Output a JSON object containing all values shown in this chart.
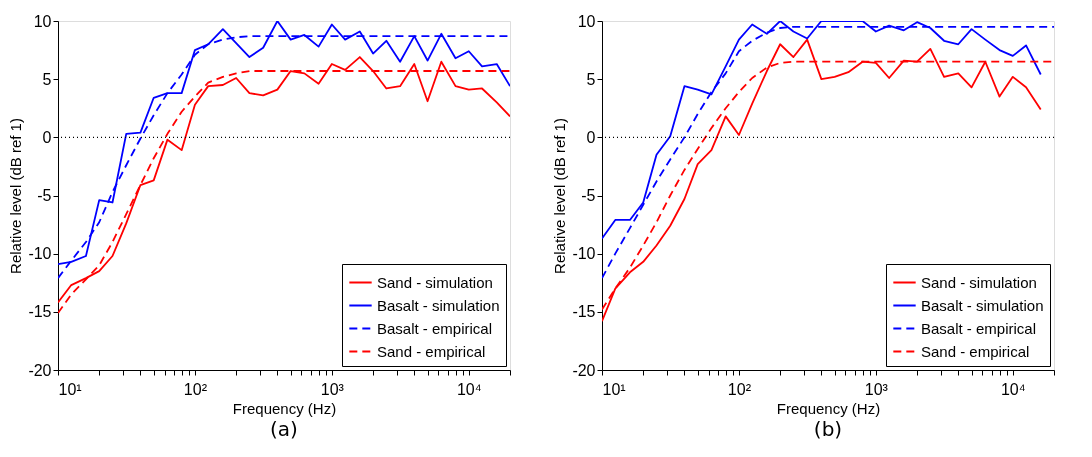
{
  "chart_data": [
    {
      "type": "line",
      "xlabel": "Frequency (Hz)",
      "ylabel": "Relative level (dB ref 1)",
      "log": "x",
      "xlim": [
        10,
        20000
      ],
      "ylim": [
        -20,
        10
      ],
      "yticks": [
        -20,
        -15,
        -10,
        -5,
        0,
        5,
        10
      ],
      "xticks": [
        {
          "value": 10,
          "label": "10¹"
        },
        {
          "value": 20,
          "label": null
        },
        {
          "value": 30,
          "label": null
        },
        {
          "value": 40,
          "label": null
        },
        {
          "value": 50,
          "label": null
        },
        {
          "value": 60,
          "label": null
        },
        {
          "value": 70,
          "label": null
        },
        {
          "value": 80,
          "label": null
        },
        {
          "value": 90,
          "label": null
        },
        {
          "value": 100,
          "label": "10²"
        },
        {
          "value": 200,
          "label": null
        },
        {
          "value": 300,
          "label": null
        },
        {
          "value": 400,
          "label": null
        },
        {
          "value": 500,
          "label": null
        },
        {
          "value": 600,
          "label": null
        },
        {
          "value": 700,
          "label": null
        },
        {
          "value": 800,
          "label": null
        },
        {
          "value": 900,
          "label": null
        },
        {
          "value": 1000,
          "label": "10³"
        },
        {
          "value": 2000,
          "label": null
        },
        {
          "value": 3000,
          "label": null
        },
        {
          "value": 4000,
          "label": null
        },
        {
          "value": 5000,
          "label": null
        },
        {
          "value": 6000,
          "label": null
        },
        {
          "value": 7000,
          "label": null
        },
        {
          "value": 8000,
          "label": null
        },
        {
          "value": 9000,
          "label": null
        },
        {
          "value": 10000,
          "label": "10⁴"
        },
        {
          "value": 20000,
          "label": null
        }
      ],
      "grid": false,
      "legend": "bottom right",
      "marker": "none",
      "annotations": [
        "(a)"
      ],
      "ref_lines": [
        {
          "axis": "y",
          "value": 0,
          "label": null,
          "color": "#000000",
          "line_style": "dotted"
        }
      ],
      "x": [
        10,
        12.5,
        16,
        20,
        25,
        31.5,
        40,
        50,
        63,
        80,
        100,
        125,
        160,
        200,
        250,
        315,
        400,
        500,
        630,
        800,
        1000,
        1250,
        1600,
        2000,
        2500,
        3150,
        4000,
        5000,
        6300,
        8000,
        10000,
        12500,
        16000,
        20000
      ],
      "series": [
        {
          "name": "Sand - simulation",
          "color": "#ff0000",
          "line_style": "solid",
          "values": [
            -14.2,
            -12.7,
            -12.1,
            -11.5,
            -10.2,
            -7.4,
            -4.1,
            -3.7,
            -0.2,
            -1.1,
            2.8,
            4.4,
            4.5,
            5.1,
            3.8,
            3.6,
            4.1,
            5.7,
            5.5,
            4.6,
            6.3,
            5.8,
            6.9,
            5.7,
            4.2,
            4.4,
            6.3,
            3.1,
            6.5,
            4.4,
            4.1,
            4.2,
            3.0,
            1.8
          ]
        },
        {
          "name": "Basalt - simulation",
          "color": "#0000ff",
          "line_style": "solid",
          "values": [
            -10.9,
            -10.7,
            -10.2,
            -5.4,
            -5.6,
            0.3,
            0.4,
            3.4,
            3.8,
            3.8,
            7.5,
            8.0,
            9.3,
            8.1,
            6.9,
            7.7,
            10.0,
            8.4,
            8.8,
            7.8,
            9.7,
            8.4,
            9.1,
            7.2,
            8.3,
            6.5,
            8.7,
            6.6,
            8.9,
            6.8,
            7.4,
            6.1,
            6.3,
            4.4
          ]
        },
        {
          "name": "Basalt - empirical",
          "color": "#0000ff",
          "line_style": "dashed",
          "values": [
            -12.1,
            -10.6,
            -9.0,
            -7.3,
            -4.7,
            -2.4,
            -0.1,
            1.9,
            3.8,
            5.4,
            7.1,
            8.0,
            8.4,
            8.6,
            8.7,
            8.7,
            8.7,
            8.7,
            8.7,
            8.7,
            8.7,
            8.7,
            8.7,
            8.7,
            8.7,
            8.7,
            8.7,
            8.7,
            8.7,
            8.7,
            8.7,
            8.7,
            8.7,
            8.7
          ]
        },
        {
          "name": "Sand - empirical",
          "color": "#ff0000",
          "line_style": "dashed",
          "values": [
            -15.1,
            -13.5,
            -12.2,
            -11.0,
            -9.0,
            -6.6,
            -4.1,
            -1.8,
            0.3,
            2.2,
            3.5,
            4.7,
            5.2,
            5.5,
            5.7,
            5.7,
            5.7,
            5.7,
            5.7,
            5.7,
            5.7,
            5.7,
            5.7,
            5.7,
            5.7,
            5.7,
            5.7,
            5.7,
            5.7,
            5.7,
            5.7,
            5.7,
            5.7,
            5.7
          ]
        }
      ]
    },
    {
      "type": "line",
      "xlabel": "Frequency (Hz)",
      "ylabel": "Relative level (dB ref 1)",
      "log": "x",
      "xlim": [
        10,
        20000
      ],
      "ylim": [
        -20,
        10
      ],
      "yticks": [
        -20,
        -15,
        -10,
        -5,
        0,
        5,
        10
      ],
      "xticks": [
        {
          "value": 10,
          "label": "10¹"
        },
        {
          "value": 20,
          "label": null
        },
        {
          "value": 30,
          "label": null
        },
        {
          "value": 40,
          "label": null
        },
        {
          "value": 50,
          "label": null
        },
        {
          "value": 60,
          "label": null
        },
        {
          "value": 70,
          "label": null
        },
        {
          "value": 80,
          "label": null
        },
        {
          "value": 90,
          "label": null
        },
        {
          "value": 100,
          "label": "10²"
        },
        {
          "value": 200,
          "label": null
        },
        {
          "value": 300,
          "label": null
        },
        {
          "value": 400,
          "label": null
        },
        {
          "value": 500,
          "label": null
        },
        {
          "value": 600,
          "label": null
        },
        {
          "value": 700,
          "label": null
        },
        {
          "value": 800,
          "label": null
        },
        {
          "value": 900,
          "label": null
        },
        {
          "value": 1000,
          "label": "10³"
        },
        {
          "value": 2000,
          "label": null
        },
        {
          "value": 3000,
          "label": null
        },
        {
          "value": 4000,
          "label": null
        },
        {
          "value": 5000,
          "label": null
        },
        {
          "value": 6000,
          "label": null
        },
        {
          "value": 7000,
          "label": null
        },
        {
          "value": 8000,
          "label": null
        },
        {
          "value": 9000,
          "label": null
        },
        {
          "value": 10000,
          "label": "10⁴"
        },
        {
          "value": 20000,
          "label": null
        }
      ],
      "grid": false,
      "legend": "bottom right",
      "marker": "none",
      "annotations": [
        "(b)"
      ],
      "ref_lines": [
        {
          "axis": "y",
          "value": 0,
          "label": null,
          "color": "#000000",
          "line_style": "dotted"
        }
      ],
      "x": [
        10,
        12.5,
        16,
        20,
        25,
        31.5,
        40,
        50,
        63,
        80,
        100,
        125,
        160,
        200,
        250,
        315,
        400,
        500,
        630,
        800,
        1000,
        1250,
        1600,
        2000,
        2500,
        3150,
        4000,
        5000,
        6300,
        8000,
        10000,
        12500,
        16000,
        20000
      ],
      "series": [
        {
          "name": "Sand - simulation",
          "color": "#ff0000",
          "line_style": "solid",
          "values": [
            -15.8,
            -13.0,
            -11.6,
            -10.7,
            -9.3,
            -7.6,
            -5.3,
            -2.3,
            -1.1,
            1.8,
            0.2,
            2.9,
            5.7,
            8.0,
            6.9,
            8.4,
            5.0,
            5.2,
            5.6,
            6.5,
            6.4,
            5.1,
            6.6,
            6.5,
            7.6,
            5.2,
            5.5,
            4.3,
            6.5,
            3.5,
            5.2,
            4.3,
            2.4,
            null
          ]
        },
        {
          "name": "Basalt - simulation",
          "color": "#0000ff",
          "line_style": "solid",
          "values": [
            -8.7,
            -7.1,
            -7.1,
            -5.6,
            -1.5,
            0.1,
            4.4,
            4.1,
            3.7,
            6.1,
            8.4,
            9.7,
            8.9,
            10,
            9.1,
            8.5,
            10,
            10,
            10,
            10,
            9.1,
            9.6,
            9.2,
            9.9,
            9.4,
            8.3,
            8.0,
            9.3,
            8.4,
            7.5,
            7.0,
            7.9,
            5.4,
            null
          ]
        },
        {
          "name": "Basalt - empirical",
          "color": "#0000ff",
          "line_style": "dashed",
          "values": [
            -12.1,
            -10.0,
            -7.8,
            -5.8,
            -3.8,
            -1.9,
            0.0,
            2.0,
            3.9,
            5.5,
            7.4,
            8.3,
            9.0,
            9.4,
            9.5,
            9.5,
            9.5,
            9.5,
            9.5,
            9.5,
            9.5,
            9.5,
            9.5,
            9.5,
            9.5,
            9.5,
            9.5,
            9.5,
            9.5,
            9.5,
            9.5,
            9.5,
            9.5,
            9.5
          ]
        },
        {
          "name": "Sand - empirical",
          "color": "#ff0000",
          "line_style": "dashed",
          "values": [
            -14.8,
            -13.0,
            -11.2,
            -9.3,
            -7.3,
            -5.0,
            -2.8,
            -1.0,
            0.8,
            2.5,
            3.9,
            5.1,
            6.0,
            6.4,
            6.5,
            6.5,
            6.5,
            6.5,
            6.5,
            6.5,
            6.5,
            6.5,
            6.5,
            6.5,
            6.5,
            6.5,
            6.5,
            6.5,
            6.5,
            6.5,
            6.5,
            6.5,
            6.5,
            6.5
          ]
        }
      ]
    }
  ]
}
